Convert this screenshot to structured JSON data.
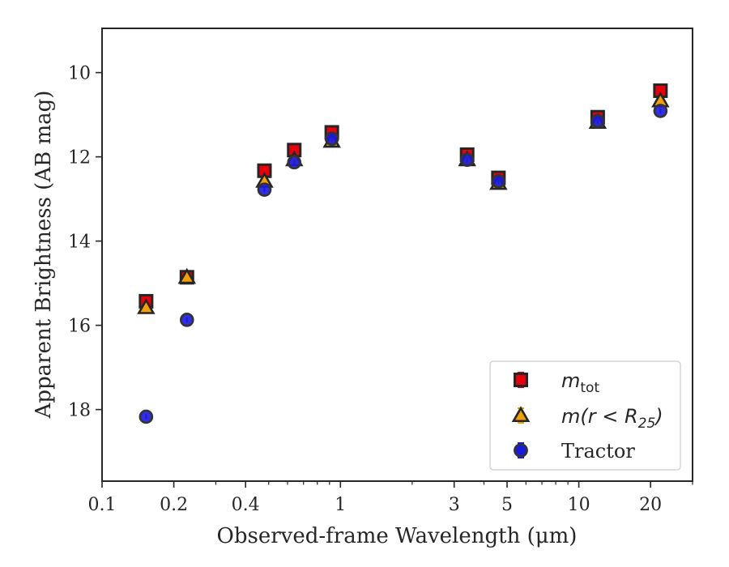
{
  "chart_data": {
    "type": "scatter",
    "title": "",
    "xlabel": "Observed-frame Wavelength (μm)",
    "ylabel": "Apparent Brightness (AB mag)",
    "xscale": "log",
    "xlim": [
      0.1,
      30
    ],
    "ylim": [
      19.7,
      8.95
    ],
    "y_inverted": true,
    "x_ticks": [
      0.1,
      0.2,
      0.4,
      1,
      3,
      5,
      10,
      20
    ],
    "x_tick_labels": [
      "0.1",
      "0.2",
      "0.4",
      "1",
      "3",
      "5",
      "10",
      "20"
    ],
    "y_ticks": [
      10,
      12,
      14,
      16,
      18
    ],
    "y_tick_labels": [
      "10",
      "12",
      "14",
      "16",
      "18"
    ],
    "grid": false,
    "legend_position": "bottom-right",
    "series": [
      {
        "name": "m_tot",
        "legend_main": "m",
        "legend_sub": "tot",
        "marker": "square",
        "fill": "#e8000b",
        "error_color": "#e8000b",
        "x": [
          0.153,
          0.227,
          0.48,
          0.64,
          0.92,
          3.4,
          4.6,
          12.0,
          22.0
        ],
        "y": [
          15.43,
          14.86,
          12.33,
          11.84,
          11.42,
          11.95,
          12.5,
          11.06,
          10.43
        ]
      },
      {
        "name": "m(r<R_25)",
        "legend_main": "m(r < R",
        "legend_sub": "25",
        "legend_tail": ")",
        "marker": "triangle",
        "fill": "#f1a00b",
        "error_color": "#f1a00b",
        "x": [
          0.153,
          0.227,
          0.48,
          0.64,
          0.92,
          3.4,
          4.6,
          12.0,
          22.0
        ],
        "y": [
          15.58,
          14.86,
          12.58,
          12.07,
          11.63,
          12.07,
          12.63,
          11.18,
          10.67
        ]
      },
      {
        "name": "Tractor",
        "legend_main": "Tractor",
        "marker": "circle",
        "fill": "#1a1adf",
        "error_color": "#1a1adf",
        "x": [
          0.153,
          0.227,
          0.48,
          0.64,
          0.92,
          3.4,
          4.6,
          12.0,
          22.0
        ],
        "y": [
          18.17,
          15.87,
          12.78,
          12.13,
          11.57,
          12.07,
          12.58,
          11.15,
          10.91
        ]
      }
    ]
  }
}
